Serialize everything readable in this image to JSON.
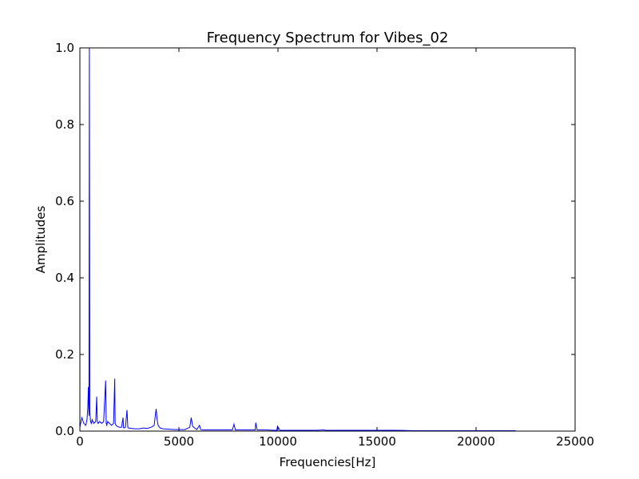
{
  "chart_data": {
    "type": "line",
    "title": "Frequency Spectrum for Vibes_02",
    "xlabel": "Frequencies[Hz]",
    "ylabel": "Amplitudes",
    "xlim": [
      0,
      25000
    ],
    "ylim": [
      0,
      1.0
    ],
    "xticks": [
      0,
      5000,
      10000,
      15000,
      20000,
      25000
    ],
    "xtick_labels": [
      "0",
      "5000",
      "10000",
      "15000",
      "20000",
      "25000"
    ],
    "yticks": [
      0.0,
      0.2,
      0.4,
      0.6,
      0.8,
      1.0
    ],
    "ytick_labels": [
      "0.0",
      "0.2",
      "0.4",
      "0.6",
      "0.8",
      "1.0"
    ],
    "grid": false,
    "line_color": "#0000ff",
    "series": [
      {
        "x": [
          0,
          100,
          200,
          300,
          360,
          400,
          430,
          460,
          480,
          500,
          540,
          580,
          620,
          700,
          800,
          850,
          880,
          920,
          1000,
          1100,
          1200,
          1300,
          1330,
          1360,
          1400,
          1500,
          1600,
          1700,
          1760,
          1780,
          1820,
          1900,
          2000,
          2100,
          2180,
          2200,
          2230,
          2300,
          2380,
          2420,
          2450,
          2600,
          2800,
          3000,
          3200,
          3400,
          3600,
          3750,
          3850,
          3900,
          3950,
          4050,
          4200,
          4500,
          4800,
          5000,
          5300,
          5550,
          5620,
          5700,
          5900,
          6040,
          6100,
          6300,
          6600,
          7000,
          7400,
          7700,
          7780,
          7850,
          8200,
          8600,
          8850,
          8880,
          8950,
          9400,
          9800,
          9940,
          9980,
          10100,
          10600,
          11200,
          12000,
          12300,
          12400,
          13000,
          14000,
          15000,
          16000,
          17000,
          18000,
          19000,
          20000,
          21000,
          22000
        ],
        "y": [
          0.01,
          0.035,
          0.02,
          0.015,
          0.03,
          0.06,
          0.115,
          0.04,
          1.0,
          0.05,
          0.025,
          0.02,
          0.03,
          0.02,
          0.025,
          0.09,
          0.025,
          0.02,
          0.025,
          0.02,
          0.025,
          0.132,
          0.02,
          0.015,
          0.025,
          0.02,
          0.015,
          0.02,
          0.137,
          0.02,
          0.015,
          0.012,
          0.01,
          0.01,
          0.035,
          0.01,
          0.008,
          0.01,
          0.055,
          0.01,
          0.008,
          0.007,
          0.006,
          0.006,
          0.008,
          0.007,
          0.01,
          0.015,
          0.058,
          0.03,
          0.015,
          0.008,
          0.006,
          0.005,
          0.004,
          0.004,
          0.004,
          0.01,
          0.035,
          0.012,
          0.004,
          0.015,
          0.004,
          0.003,
          0.003,
          0.003,
          0.003,
          0.003,
          0.018,
          0.003,
          0.003,
          0.003,
          0.003,
          0.022,
          0.003,
          0.003,
          0.002,
          0.002,
          0.013,
          0.002,
          0.002,
          0.002,
          0.002,
          0.003,
          0.002,
          0.002,
          0.002,
          0.002,
          0.002,
          0.001,
          0.001,
          0.001,
          0.001,
          0.001,
          0.001
        ]
      }
    ]
  }
}
